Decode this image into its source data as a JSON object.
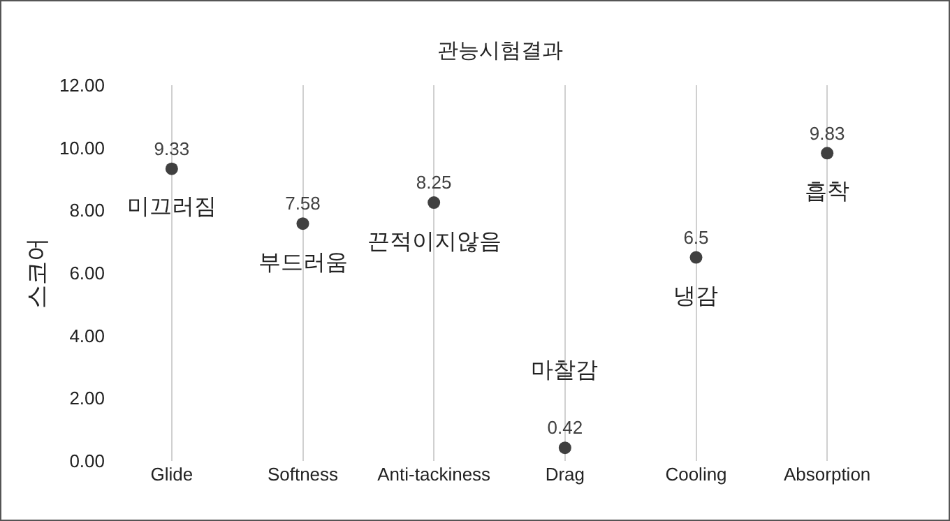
{
  "chart_data": {
    "type": "scatter",
    "title": "관능시험결과",
    "ylabel": "스코어",
    "categories": [
      "Glide",
      "Softness",
      "Anti-tackiness",
      "Drag",
      "Cooling",
      "Absorption"
    ],
    "values": [
      9.33,
      7.58,
      8.25,
      0.42,
      6.5,
      9.83
    ],
    "color": "#404040",
    "marker": "circle",
    "data_labels": true,
    "grid": "x",
    "ylim": [
      0,
      12
    ],
    "yticks": [
      {
        "value": 0,
        "label": "0.00"
      },
      {
        "value": 2,
        "label": "2.00"
      },
      {
        "value": 4,
        "label": "4.00"
      },
      {
        "value": 6,
        "label": "6.00"
      },
      {
        "value": 8,
        "label": "8.00"
      },
      {
        "value": 10,
        "label": "10.00"
      },
      {
        "value": 12,
        "label": "12.00"
      }
    ],
    "annotations": [
      {
        "text": "미끄러짐",
        "x": "Glide",
        "y": 9.33
      },
      {
        "text": "부드러움",
        "x": "Softness",
        "y": 7.58
      },
      {
        "text": "끈적이지않음",
        "x": "Anti-tackiness",
        "y": 8.25
      },
      {
        "text": "마찰감",
        "x": "Drag",
        "y": 0.42
      },
      {
        "text": "냉감",
        "x": "Cooling",
        "y": 6.5
      },
      {
        "text": "흡착",
        "x": "Absorption",
        "y": 9.83
      }
    ]
  }
}
